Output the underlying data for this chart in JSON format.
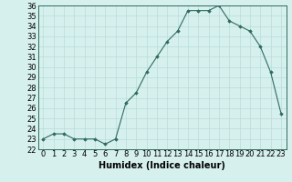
{
  "x": [
    0,
    1,
    2,
    3,
    4,
    5,
    6,
    7,
    8,
    9,
    10,
    11,
    12,
    13,
    14,
    15,
    16,
    17,
    18,
    19,
    20,
    21,
    22,
    23
  ],
  "y": [
    23,
    23.5,
    23.5,
    23,
    23,
    23,
    22.5,
    23,
    26.5,
    27.5,
    29.5,
    31,
    32.5,
    33.5,
    35.5,
    35.5,
    35.5,
    36,
    34.5,
    34,
    33.5,
    32,
    29.5,
    25.5
  ],
  "title": "",
  "xlabel": "Humidex (Indice chaleur)",
  "ylabel": "",
  "ylim": [
    22,
    36
  ],
  "xlim": [
    -0.5,
    23.5
  ],
  "yticks": [
    22,
    23,
    24,
    25,
    26,
    27,
    28,
    29,
    30,
    31,
    32,
    33,
    34,
    35,
    36
  ],
  "xticks": [
    0,
    1,
    2,
    3,
    4,
    5,
    6,
    7,
    8,
    9,
    10,
    11,
    12,
    13,
    14,
    15,
    16,
    17,
    18,
    19,
    20,
    21,
    22,
    23
  ],
  "line_color": "#2F6B5E",
  "marker": "D",
  "marker_size": 1.8,
  "bg_color": "#D6F0EE",
  "grid_color": "#B8DDD9",
  "font_size": 6,
  "xlabel_fontsize": 7
}
